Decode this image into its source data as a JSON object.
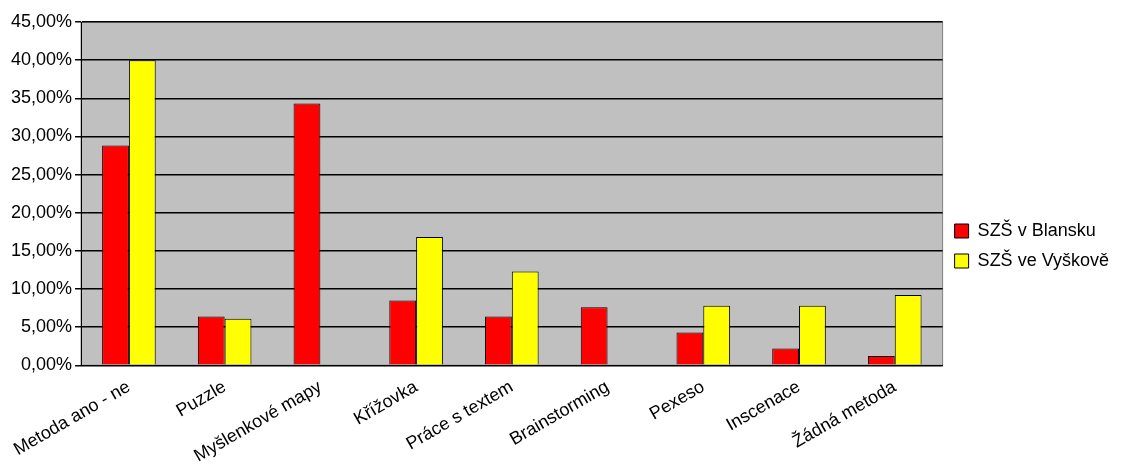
{
  "chart_data": {
    "type": "bar",
    "categories": [
      "Metoda ano - ne",
      "Puzzle",
      "Myšlenkové mapy",
      "Křížovka",
      "Práce s textem",
      "Brainstorming",
      "Pexeso",
      "Inscenace",
      "Žádná metoda"
    ],
    "series": [
      {
        "name": "SZŠ v Blansku",
        "color": "#ff0000",
        "values": [
          28.8,
          6.4,
          34.3,
          8.5,
          6.4,
          7.6,
          4.3,
          2.2,
          1.2
        ]
      },
      {
        "name": "SZŠ ve Vyškově",
        "color": "#ffff00",
        "values": [
          40,
          6.1,
          0,
          16.8,
          12.3,
          0,
          7.8,
          7.8,
          9.2
        ]
      }
    ],
    "ylim": [
      0,
      45
    ],
    "yticks": [
      {
        "value": 0,
        "label": "0,00%"
      },
      {
        "value": 5,
        "label": "5,00%"
      },
      {
        "value": 10,
        "label": "10,00%"
      },
      {
        "value": 15,
        "label": "15,00%"
      },
      {
        "value": 20,
        "label": "20,00%"
      },
      {
        "value": 25,
        "label": "25,00%"
      },
      {
        "value": 30,
        "label": "30,00%"
      },
      {
        "value": 35,
        "label": "35,00%"
      },
      {
        "value": 40,
        "label": "40,00%"
      },
      {
        "value": 45,
        "label": "45,00%"
      }
    ],
    "grid": "y",
    "legend": "right"
  }
}
